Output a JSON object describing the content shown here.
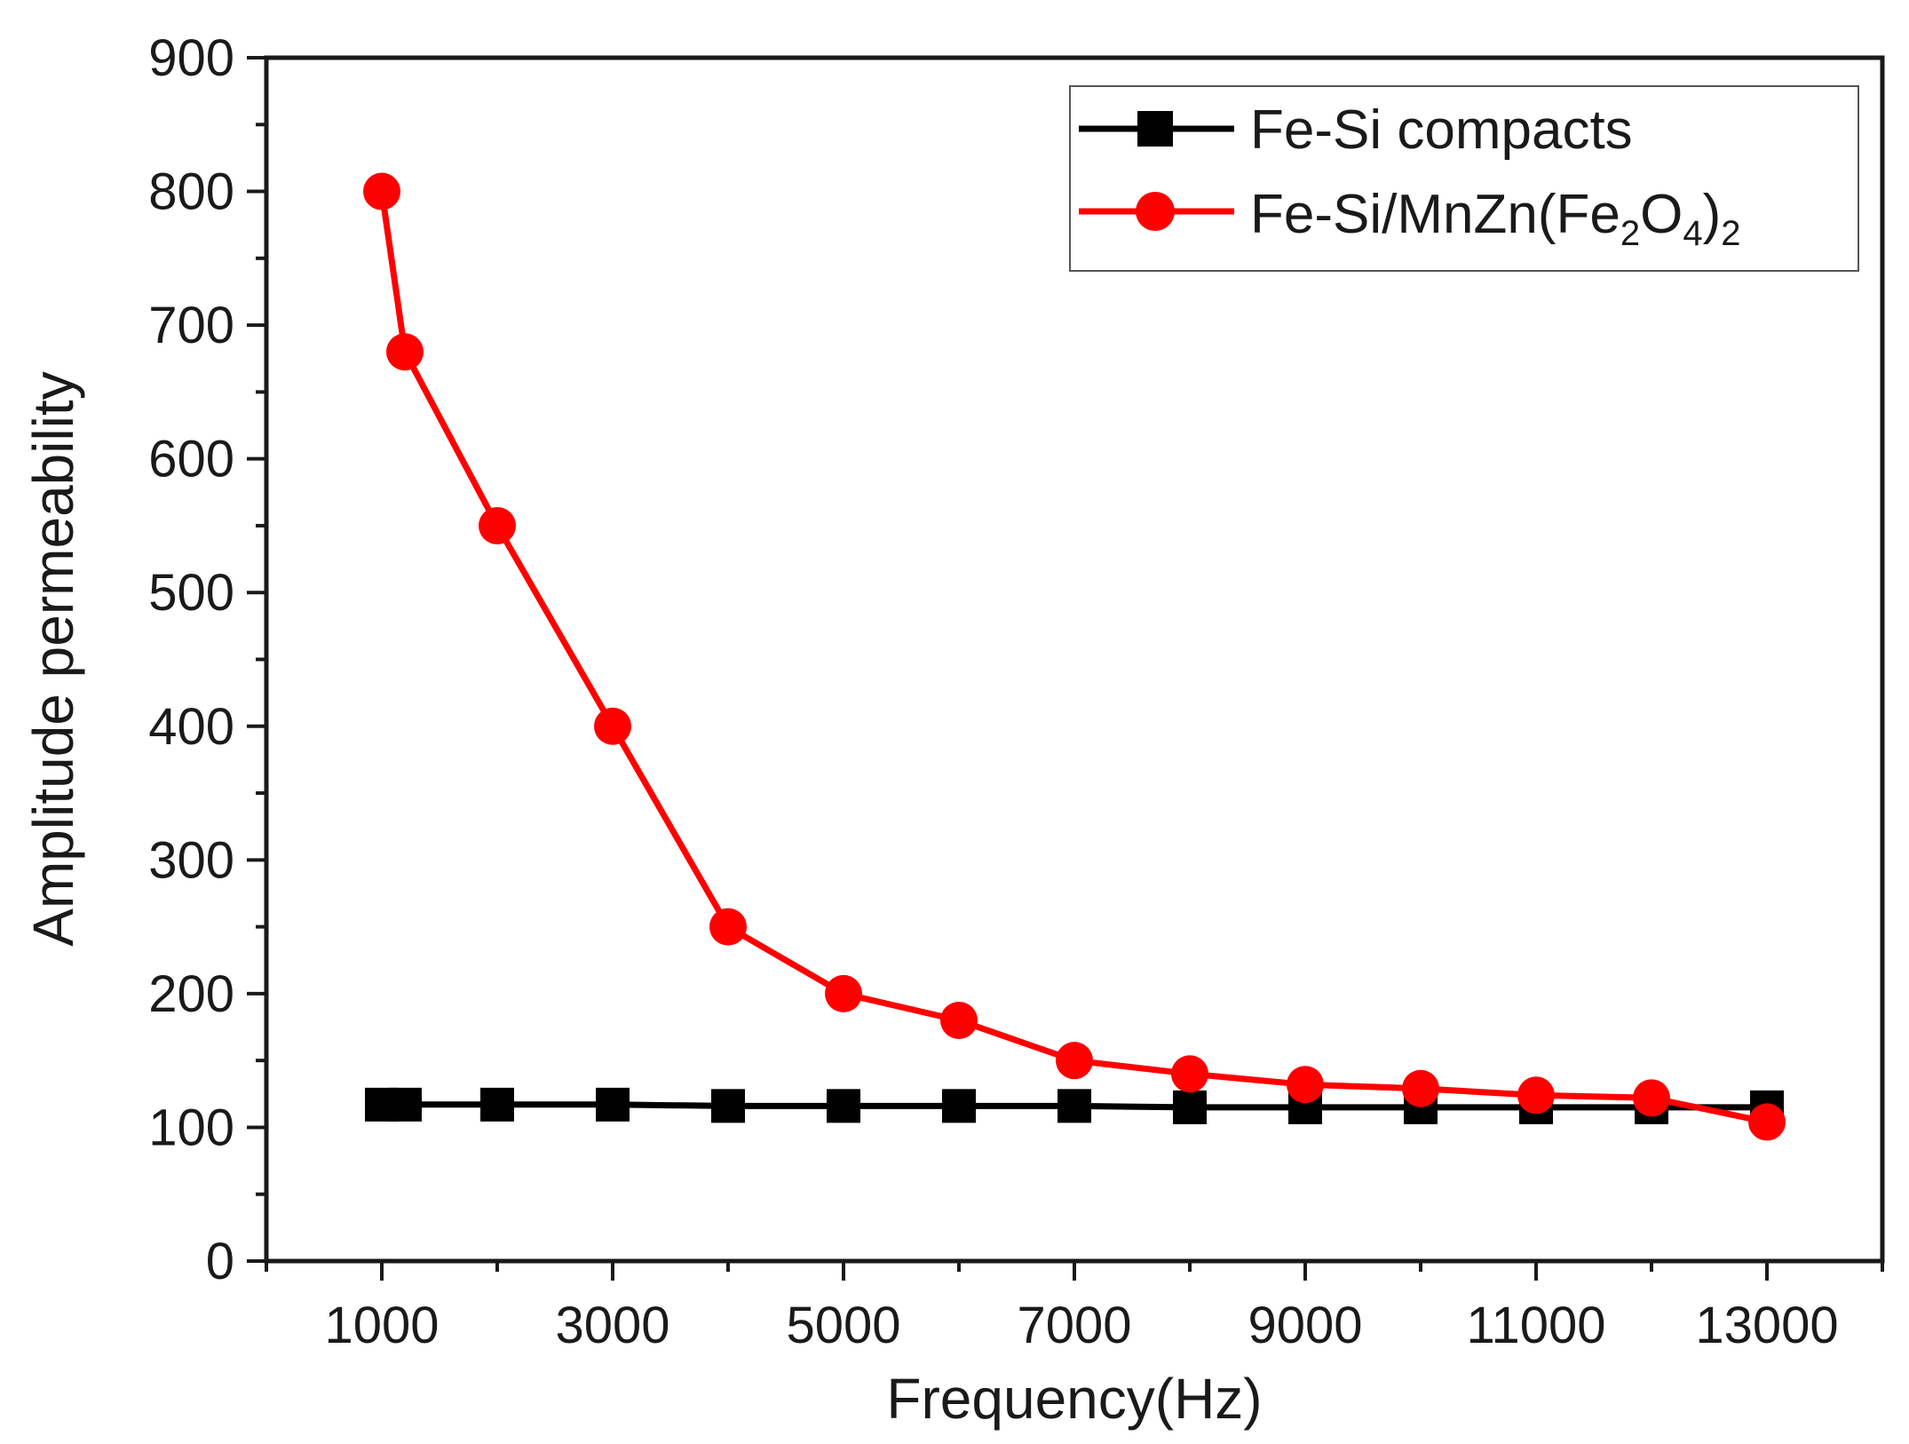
{
  "chart_data": {
    "type": "line",
    "title": "",
    "xlabel": "Frequency(Hz)",
    "ylabel": "Amplitude permeability",
    "xlim": [
      0,
      14000
    ],
    "ylim": [
      0,
      900
    ],
    "xticks": [
      1000,
      3000,
      5000,
      7000,
      9000,
      11000,
      13000
    ],
    "xtick_labels": [
      "1000",
      "3000",
      "5000",
      "7000",
      "9000",
      "11000",
      "13000"
    ],
    "yticks": [
      0,
      100,
      200,
      300,
      400,
      500,
      600,
      700,
      800,
      900
    ],
    "ytick_labels": [
      "0",
      "100",
      "200",
      "300",
      "400",
      "500",
      "600",
      "700",
      "800",
      "900"
    ],
    "grid": false,
    "legend_position": "top-right",
    "series": [
      {
        "name": "Fe-Si compacts",
        "color": "#000000",
        "marker": "square",
        "x": [
          1000,
          1200,
          2000,
          3000,
          4000,
          5000,
          6000,
          7000,
          8000,
          9000,
          10000,
          11000,
          12000,
          13000
        ],
        "y": [
          117,
          117,
          117,
          117,
          116,
          116,
          116,
          116,
          115,
          115,
          115,
          115,
          115,
          115
        ]
      },
      {
        "name": "Fe-Si/MnZn(Fe2O4)2",
        "color": "#ff0000",
        "marker": "circle",
        "x": [
          1000,
          1200,
          2000,
          3000,
          4000,
          5000,
          6000,
          7000,
          8000,
          9000,
          10000,
          11000,
          12000,
          13000
        ],
        "y": [
          800,
          680,
          550,
          400,
          250,
          200,
          180,
          150,
          140,
          132,
          129,
          124,
          122,
          104
        ]
      }
    ]
  },
  "legend": {
    "entry1": "Fe-Si compacts",
    "entry2_main": "Fe-Si/MnZn(Fe",
    "entry2_sub1": "2",
    "entry2_mid": "O",
    "entry2_sub2": "4",
    "entry2_close": ")",
    "entry2_sub3": "2"
  }
}
